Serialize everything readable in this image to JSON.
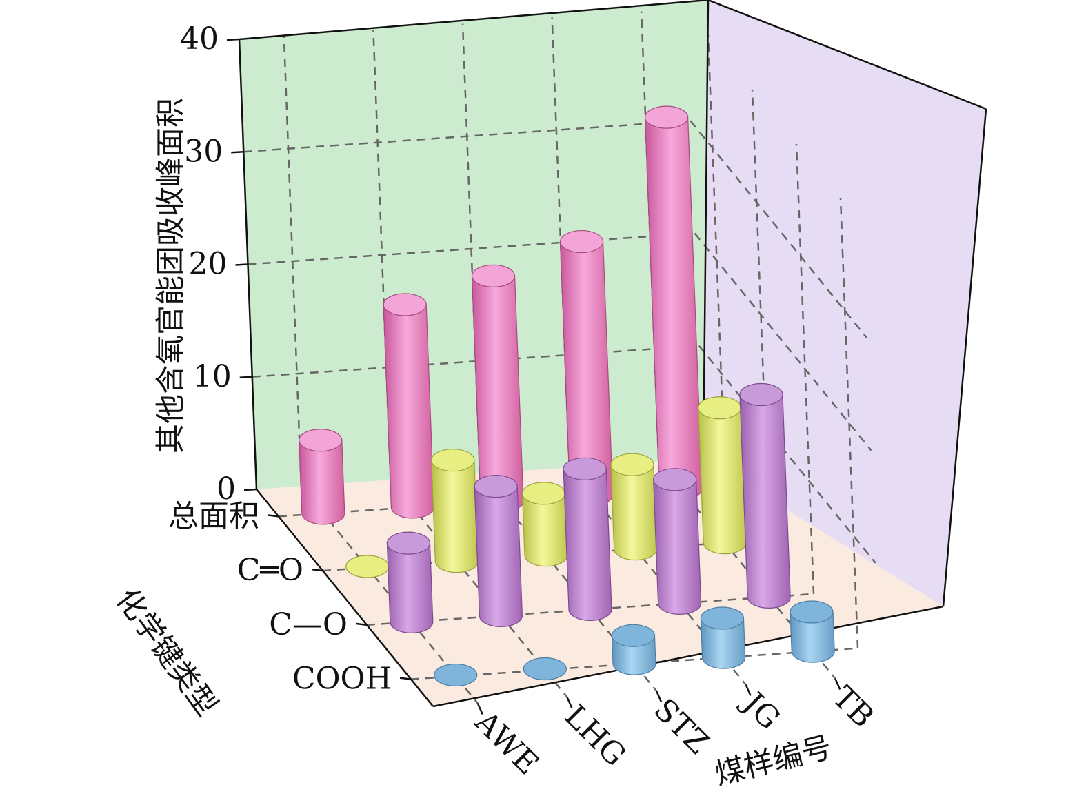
{
  "chart_data": {
    "type": "bar3d",
    "zlabel": "其他含氧官能团吸收峰面积",
    "xlabel": "煤样编号",
    "ylabel": "化学键类型",
    "zlim": [
      0,
      40
    ],
    "zticks": [
      "0",
      "10",
      "20",
      "30",
      "40"
    ],
    "x_categories": [
      "AWE",
      "LHG",
      "STZ",
      "JG",
      "TB"
    ],
    "y_categories": [
      "总面积",
      "C═O",
      "C—O",
      "COOH"
    ],
    "grid": true,
    "series": [
      {
        "name": "总面积",
        "color": "#f08ccb",
        "values": [
          6.5,
          18,
          20,
          22.5,
          33
        ]
      },
      {
        "name": "C═O",
        "color": "#e4ec74",
        "values": [
          0.1,
          9,
          5.5,
          7.5,
          12
        ]
      },
      {
        "name": "C—O",
        "color": "#c98ed8",
        "values": [
          7,
          11.5,
          12.5,
          11,
          18
        ]
      },
      {
        "name": "COOH",
        "color": "#8cc2e6",
        "values": [
          0.1,
          0.1,
          2.5,
          3.5,
          3.5
        ]
      }
    ],
    "wall_colors": {
      "back": "#cdeccf",
      "side": "#e6dcf3",
      "floor": "#fbeae0"
    }
  }
}
